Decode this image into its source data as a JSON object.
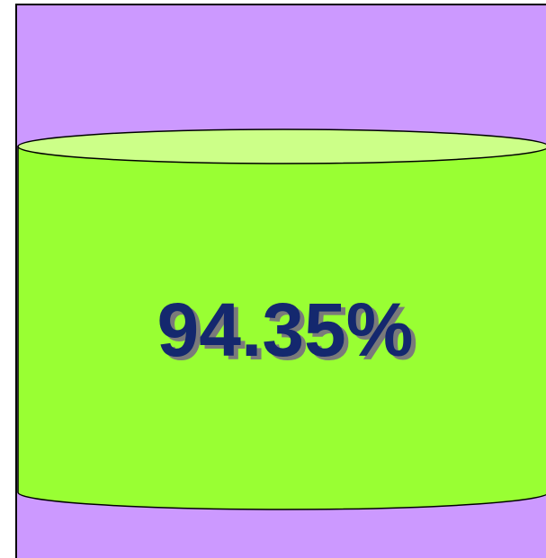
{
  "gauge": {
    "label": "94.35%"
  }
}
